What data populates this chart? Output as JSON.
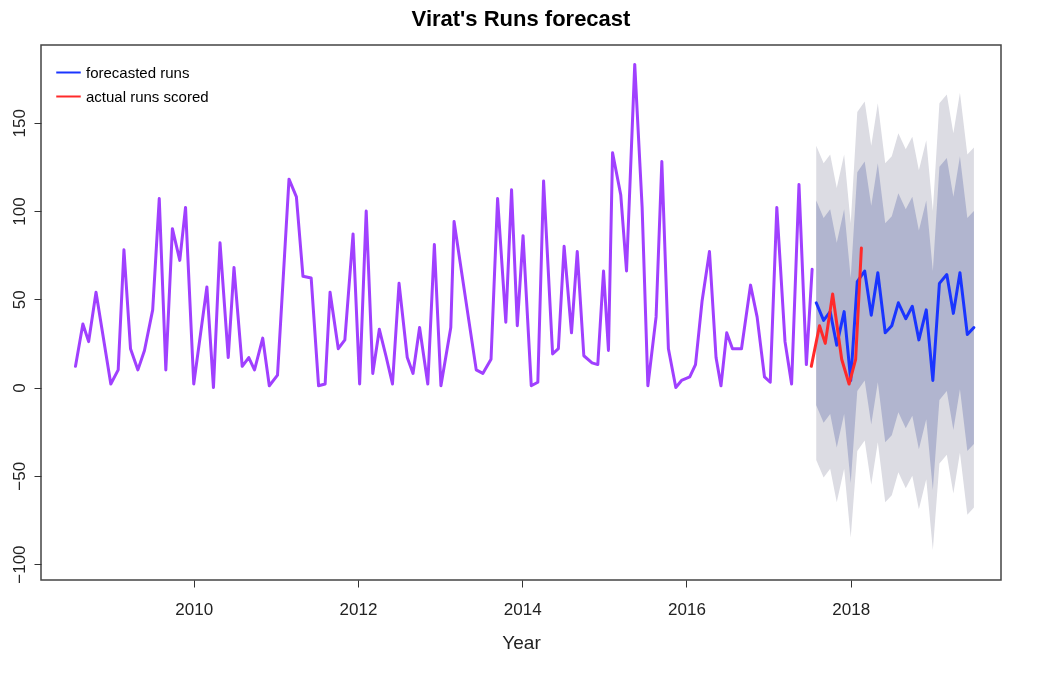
{
  "chart_data": {
    "type": "line",
    "title": "Virat's Runs forecast",
    "xlabel": "Year",
    "xlim": [
      2008.14,
      2019.83
    ],
    "ylim": [
      -109,
      194
    ],
    "xticks": [
      2010,
      2012,
      2014,
      2016,
      2018
    ],
    "yticks": [
      -100,
      -50,
      0,
      50,
      100,
      150
    ],
    "grid": false,
    "legend": "top left",
    "series": [
      {
        "color": "#a040ff",
        "x": [
          2008.56,
          2008.65,
          2008.72,
          2008.81,
          2008.99,
          2009.08,
          2009.15,
          2009.23,
          2009.32,
          2009.4,
          2009.5,
          2009.58,
          2009.66,
          2009.74,
          2009.83,
          2009.9,
          2010.0,
          2010.16,
          2010.24,
          2010.32,
          2010.42,
          2010.49,
          2010.59,
          2010.67,
          2010.74,
          2010.84,
          2010.92,
          2011.02,
          2011.16,
          2011.25,
          2011.33,
          2011.43,
          2011.52,
          2011.6,
          2011.66,
          2011.76,
          2011.84,
          2011.94,
          2012.02,
          2012.1,
          2012.18,
          2012.26,
          2012.34,
          2012.42,
          2012.5,
          2012.6,
          2012.67,
          2012.75,
          2012.85,
          2012.93,
          2013.01,
          2013.13,
          2013.17,
          2013.34,
          2013.44,
          2013.52,
          2013.62,
          2013.7,
          2013.8,
          2013.87,
          2013.94,
          2014.01,
          2014.11,
          2014.19,
          2014.26,
          2014.37,
          2014.44,
          2014.51,
          2014.6,
          2014.67,
          2014.75,
          2014.85,
          2014.92,
          2014.99,
          2015.05,
          2015.1,
          2015.2,
          2015.27,
          2015.37,
          2015.46,
          2015.53,
          2015.63,
          2015.7,
          2015.78,
          2015.87,
          2015.94,
          2016.04,
          2016.11,
          2016.19,
          2016.28,
          2016.36,
          2016.42,
          2016.49,
          2016.56,
          2016.67,
          2016.78,
          2016.86,
          2016.95,
          2017.02,
          2017.1,
          2017.2,
          2017.28,
          2017.37,
          2017.46,
          2017.53
        ],
        "values": [
          12,
          36,
          26,
          54,
          2,
          10,
          78,
          22,
          10,
          21,
          44,
          107,
          10,
          90,
          72,
          102,
          2,
          57,
          0,
          82,
          17,
          68,
          12,
          17,
          10,
          28,
          1,
          7,
          118,
          108,
          63,
          62,
          1,
          2,
          54,
          22,
          27,
          87,
          2,
          100,
          8,
          33,
          18,
          2,
          59,
          17,
          8,
          34,
          2,
          81,
          1,
          34,
          94,
          41,
          10,
          8,
          16,
          107,
          37,
          112,
          35,
          86,
          1,
          3,
          117,
          19,
          22,
          80,
          31,
          77,
          18,
          14,
          13,
          66,
          21,
          133,
          109,
          66,
          183,
          102,
          1,
          40,
          128,
          22,
          0,
          4,
          6,
          13,
          49,
          77,
          17,
          1,
          31,
          22,
          22,
          58,
          40,
          6,
          3,
          102,
          26,
          2,
          115,
          13,
          67
        ]
      },
      {
        "color": "#dcdce3",
        "x": [
          2017.58,
          2017.67,
          2017.75,
          2017.83,
          2017.92,
          2018.0,
          2018.08,
          2018.17,
          2018.25,
          2018.33,
          2018.42,
          2018.5,
          2018.58,
          2018.67,
          2018.75,
          2018.83,
          2018.92,
          2019.0,
          2019.08,
          2019.17,
          2019.25,
          2019.33,
          2019.42,
          2019.5
        ],
        "values": [
          null,
          null,
          null,
          null,
          null,
          null,
          null,
          null,
          null,
          null,
          null,
          null,
          null,
          null,
          null,
          null,
          null,
          null,
          null,
          null,
          null,
          null,
          null,
          null
        ],
        "upper": [
          137,
          127,
          132,
          113,
          132,
          93,
          156,
          162,
          137,
          161,
          127,
          131,
          144,
          135,
          142,
          123,
          140,
          100,
          161,
          166,
          144,
          167,
          132,
          136
        ],
        "lower": [
          -41,
          -51,
          -46,
          -65,
          -46,
          -85,
          -36,
          -30,
          -55,
          -31,
          -65,
          -61,
          -48,
          -57,
          -50,
          -69,
          -52,
          -92,
          -43,
          -38,
          -60,
          -37,
          -72,
          -68
        ]
      },
      {
        "color": "#b1b5cf",
        "x": [
          2017.58,
          2017.67,
          2017.75,
          2017.83,
          2017.92,
          2018.0,
          2018.08,
          2018.17,
          2018.25,
          2018.33,
          2018.42,
          2018.5,
          2018.58,
          2018.67,
          2018.75,
          2018.83,
          2018.92,
          2019.0,
          2019.08,
          2019.17,
          2019.25,
          2019.33,
          2019.42,
          2019.5
        ],
        "values": [
          null,
          null,
          null,
          null,
          null,
          null,
          null,
          null,
          null,
          null,
          null,
          null,
          null,
          null,
          null,
          null,
          null,
          null,
          null,
          null,
          null,
          null,
          null,
          null
        ],
        "upper": [
          106,
          96,
          101,
          82,
          101,
          62,
          122,
          128,
          103,
          127,
          93,
          97,
          110,
          101,
          108,
          89,
          106,
          66,
          125,
          130,
          108,
          131,
          96,
          100
        ],
        "lower": [
          -10,
          -20,
          -15,
          -34,
          -15,
          -54,
          -2,
          4,
          -21,
          3,
          -31,
          -27,
          -14,
          -23,
          -16,
          -35,
          -18,
          -58,
          -7,
          -2,
          -24,
          -1,
          -36,
          -32
        ]
      },
      {
        "name": "forecasted runs",
        "color": "#1a35ff",
        "x": [
          2017.58,
          2017.67,
          2017.75,
          2017.83,
          2017.92,
          2018.0,
          2018.08,
          2018.17,
          2018.25,
          2018.33,
          2018.42,
          2018.5,
          2018.58,
          2018.67,
          2018.75,
          2018.83,
          2018.92,
          2019.0,
          2019.08,
          2019.17,
          2019.25,
          2019.33,
          2019.42,
          2019.5
        ],
        "values": [
          48,
          38,
          43,
          24,
          43,
          4,
          60,
          66,
          41,
          65,
          31,
          35,
          48,
          39,
          46,
          27,
          44,
          4,
          59,
          64,
          42,
          65,
          30,
          34
        ]
      },
      {
        "name": "actual runs scored",
        "color": "#ff2a2a",
        "x": [
          2017.52,
          2017.62,
          2017.69,
          2017.78,
          2017.89,
          2017.98,
          2018.06,
          2018.13
        ],
        "values": [
          12,
          35,
          25,
          53,
          16,
          2,
          16,
          79
        ]
      }
    ]
  }
}
